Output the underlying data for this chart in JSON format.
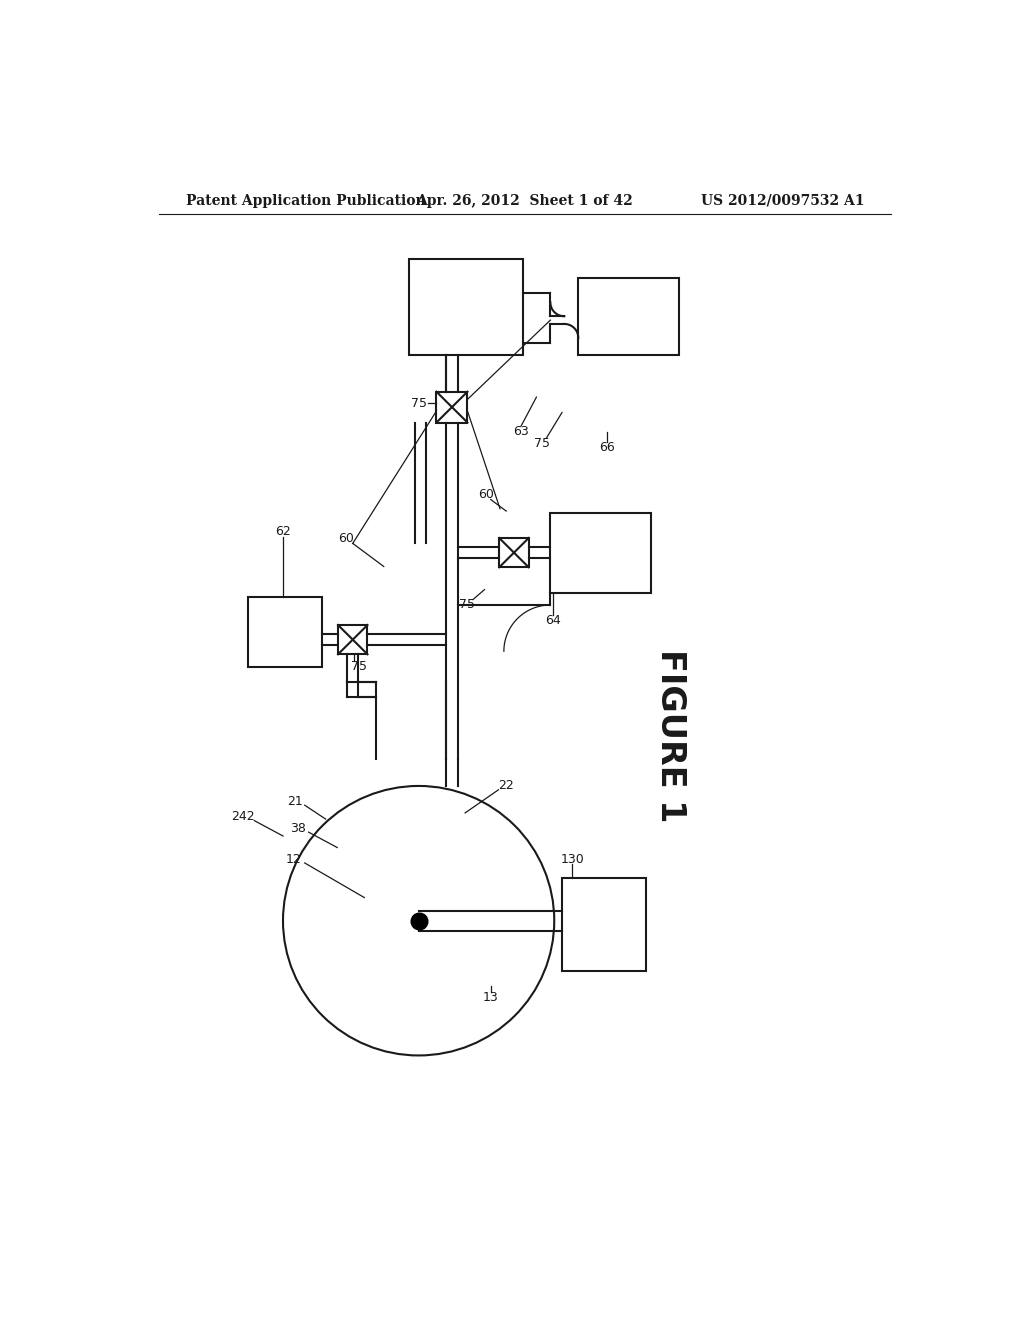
{
  "bg_color": "#ffffff",
  "line_color": "#1a1a1a",
  "header_left": "Patent Application Publication",
  "header_mid": "Apr. 26, 2012  Sheet 1 of 42",
  "header_right": "US 2012/0097532 A1",
  "figure_label": "FIGURE 1",
  "lw": 1.5,
  "lw_thin": 0.9
}
